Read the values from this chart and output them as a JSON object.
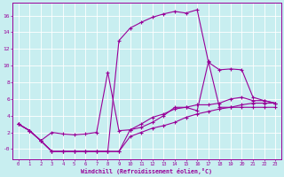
{
  "bg_color": "#c8eef0",
  "grid_color": "#b8dfe2",
  "line_color": "#990099",
  "xlim": [
    -0.5,
    23.5
  ],
  "ylim": [
    -1.2,
    17.5
  ],
  "xticks": [
    0,
    1,
    2,
    3,
    4,
    5,
    6,
    7,
    8,
    9,
    10,
    11,
    12,
    13,
    14,
    15,
    16,
    17,
    18,
    19,
    20,
    21,
    22,
    23
  ],
  "yticks": [
    0,
    2,
    4,
    6,
    8,
    10,
    12,
    14,
    16
  ],
  "ytick_labels": [
    "-0",
    "2",
    "4",
    "6",
    "8",
    "10",
    "12",
    "14",
    "16"
  ],
  "xlabel": "Windchill (Refroidissement éolien,°C)",
  "curve_high_x": [
    0,
    1,
    2,
    3,
    4,
    5,
    6,
    7,
    8,
    9,
    10,
    11,
    12,
    13,
    14,
    15,
    16,
    17,
    18,
    19,
    20,
    21,
    22,
    23
  ],
  "curve_high_y": [
    3.0,
    2.2,
    1.0,
    -0.3,
    -0.3,
    -0.3,
    -0.3,
    -0.3,
    -0.3,
    13.0,
    14.5,
    15.2,
    15.8,
    16.2,
    16.5,
    16.3,
    16.7,
    10.5,
    5.0,
    5.0,
    5.0,
    5.0,
    5.0,
    5.0
  ],
  "curve_spike_x": [
    0,
    1,
    2,
    3,
    4,
    5,
    6,
    7,
    8,
    9,
    10,
    11,
    12,
    13,
    14,
    15,
    16,
    17,
    18,
    19,
    20,
    21,
    22,
    23
  ],
  "curve_spike_y": [
    3.0,
    2.2,
    1.0,
    2.0,
    1.8,
    1.7,
    1.8,
    2.0,
    9.2,
    2.2,
    2.3,
    2.6,
    3.2,
    4.0,
    5.0,
    5.0,
    4.6,
    10.4,
    9.5,
    9.6,
    9.5,
    6.2,
    5.8,
    5.5
  ],
  "curve_mid_x": [
    0,
    1,
    2,
    3,
    4,
    5,
    6,
    7,
    8,
    9,
    10,
    11,
    12,
    13,
    14,
    15,
    16,
    17,
    18,
    19,
    20,
    21,
    22,
    23
  ],
  "curve_mid_y": [
    3.0,
    2.2,
    1.0,
    -0.3,
    -0.3,
    -0.3,
    -0.3,
    -0.3,
    -0.3,
    -0.3,
    2.3,
    3.0,
    3.8,
    4.2,
    4.8,
    5.0,
    5.3,
    5.3,
    5.5,
    6.0,
    6.2,
    5.8,
    5.8,
    5.5
  ],
  "curve_low_x": [
    0,
    1,
    2,
    3,
    4,
    5,
    6,
    7,
    8,
    9,
    10,
    11,
    12,
    13,
    14,
    15,
    16,
    17,
    18,
    19,
    20,
    21,
    22,
    23
  ],
  "curve_low_y": [
    3.0,
    2.2,
    1.0,
    -0.3,
    -0.3,
    -0.3,
    -0.3,
    -0.3,
    -0.3,
    -0.3,
    1.5,
    2.0,
    2.5,
    2.8,
    3.2,
    3.8,
    4.2,
    4.5,
    4.8,
    5.0,
    5.3,
    5.5,
    5.5,
    5.5
  ]
}
